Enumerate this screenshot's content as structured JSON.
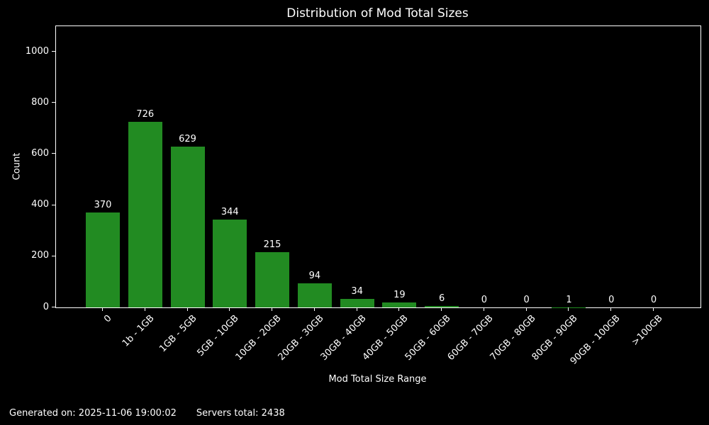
{
  "chart_data": {
    "type": "bar",
    "title": "Distribution of Mod Total Sizes",
    "xlabel": "Mod Total Size Range",
    "ylabel": "Count",
    "categories": [
      "0",
      "1b - 1GB",
      "1GB - 5GB",
      "5GB - 10GB",
      "10GB - 20GB",
      "20GB - 30GB",
      "30GB - 40GB",
      "40GB - 50GB",
      "50GB - 60GB",
      "60GB - 70GB",
      "70GB - 80GB",
      "80GB - 90GB",
      "90GB - 100GB",
      ">100GB"
    ],
    "values": [
      370,
      726,
      629,
      344,
      215,
      94,
      34,
      19,
      6,
      0,
      0,
      1,
      0,
      0
    ],
    "value_labels": [
      "370",
      "726",
      "629",
      "344",
      "215",
      "94",
      "34",
      "19",
      "6",
      "0",
      "0",
      "1",
      "0",
      "0"
    ],
    "yticks": [
      0,
      200,
      400,
      600,
      800,
      1000
    ],
    "ylim": [
      0,
      1100
    ],
    "grid": false,
    "legend": false,
    "x_tick_rotation_deg": 45,
    "bar_color": "#228B22",
    "background_color": "#000000",
    "text_color": "#ffffff",
    "spine_color": "#ffffff"
  },
  "footer": {
    "generated_on": "Generated on: 2025-11-06 19:00:02",
    "servers_total": "Servers total: 2438"
  }
}
